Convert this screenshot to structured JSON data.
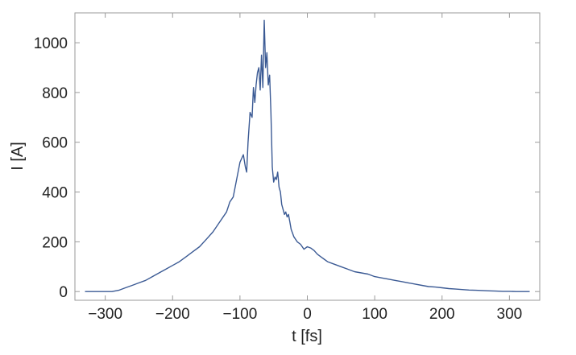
{
  "chart_data": {
    "type": "line",
    "title": "",
    "xlabel": "t [fs]",
    "ylabel": "I [A]",
    "xlim": [
      -345,
      345
    ],
    "ylim": [
      -35,
      1120
    ],
    "grid": false,
    "x_ticks": [
      -300,
      -200,
      -100,
      0,
      100,
      200,
      300
    ],
    "x_tick_labels": [
      "−300",
      "−200",
      "−100",
      "0",
      "100",
      "200",
      "300"
    ],
    "y_ticks": [
      0,
      200,
      400,
      600,
      800,
      1000
    ],
    "y_tick_labels": [
      "0",
      "200",
      "400",
      "600",
      "800",
      "1000"
    ],
    "line_color": "#3b5a94",
    "series": [
      {
        "x": [
          -330,
          -300,
          -290,
          -280,
          -270,
          -260,
          -250,
          -240,
          -230,
          -220,
          -210,
          -200,
          -190,
          -180,
          -170,
          -160,
          -150,
          -140,
          -130,
          -120,
          -115,
          -110,
          -105,
          -100,
          -95,
          -92,
          -90,
          -88,
          -85,
          -82,
          -80,
          -78,
          -76,
          -74,
          -72,
          -70,
          -68,
          -66,
          -64,
          -62,
          -60,
          -58,
          -56,
          -54,
          -52,
          -50,
          -48,
          -46,
          -44,
          -42,
          -40,
          -38,
          -36,
          -34,
          -32,
          -30,
          -28,
          -26,
          -24,
          -22,
          -20,
          -15,
          -10,
          -5,
          0,
          5,
          10,
          15,
          20,
          25,
          30,
          40,
          50,
          60,
          70,
          80,
          90,
          100,
          110,
          120,
          130,
          140,
          150,
          160,
          170,
          180,
          190,
          200,
          210,
          220,
          230,
          240,
          250,
          260,
          270,
          280,
          290,
          300,
          310,
          320,
          330
        ],
        "y": [
          0,
          0,
          0,
          5,
          15,
          25,
          35,
          45,
          60,
          75,
          90,
          105,
          120,
          140,
          160,
          180,
          210,
          240,
          280,
          320,
          360,
          380,
          450,
          520,
          550,
          500,
          480,
          600,
          720,
          700,
          820,
          760,
          830,
          880,
          900,
          810,
          950,
          820,
          1090,
          900,
          960,
          830,
          870,
          720,
          500,
          440,
          460,
          450,
          480,
          420,
          400,
          350,
          330,
          310,
          320,
          300,
          310,
          280,
          250,
          235,
          220,
          200,
          190,
          170,
          180,
          175,
          165,
          150,
          140,
          130,
          120,
          110,
          100,
          90,
          80,
          75,
          70,
          60,
          55,
          50,
          45,
          40,
          35,
          30,
          25,
          20,
          18,
          15,
          12,
          10,
          8,
          6,
          5,
          4,
          3,
          2,
          1,
          1,
          0,
          0,
          0
        ]
      }
    ]
  }
}
